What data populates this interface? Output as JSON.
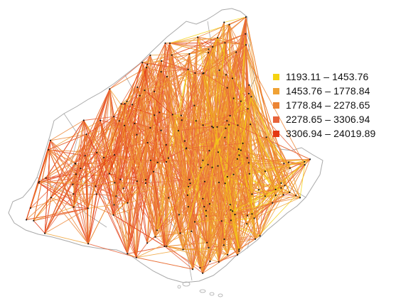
{
  "legend": {
    "items": [
      {
        "label": "1193.11 – 1453.76",
        "color": "#f5d311"
      },
      {
        "label": "1453.76 – 1778.84",
        "color": "#f0a235"
      },
      {
        "label": "1778.84 – 2278.65",
        "color": "#ec8433"
      },
      {
        "label": "2278.65 – 3306.94",
        "color": "#e7633a"
      },
      {
        "label": "3306.94 – 24019.89",
        "color": "#e43812"
      }
    ]
  },
  "map": {
    "boundary_color": "#a9a9a9",
    "node_color": "#1a1a1a"
  }
}
